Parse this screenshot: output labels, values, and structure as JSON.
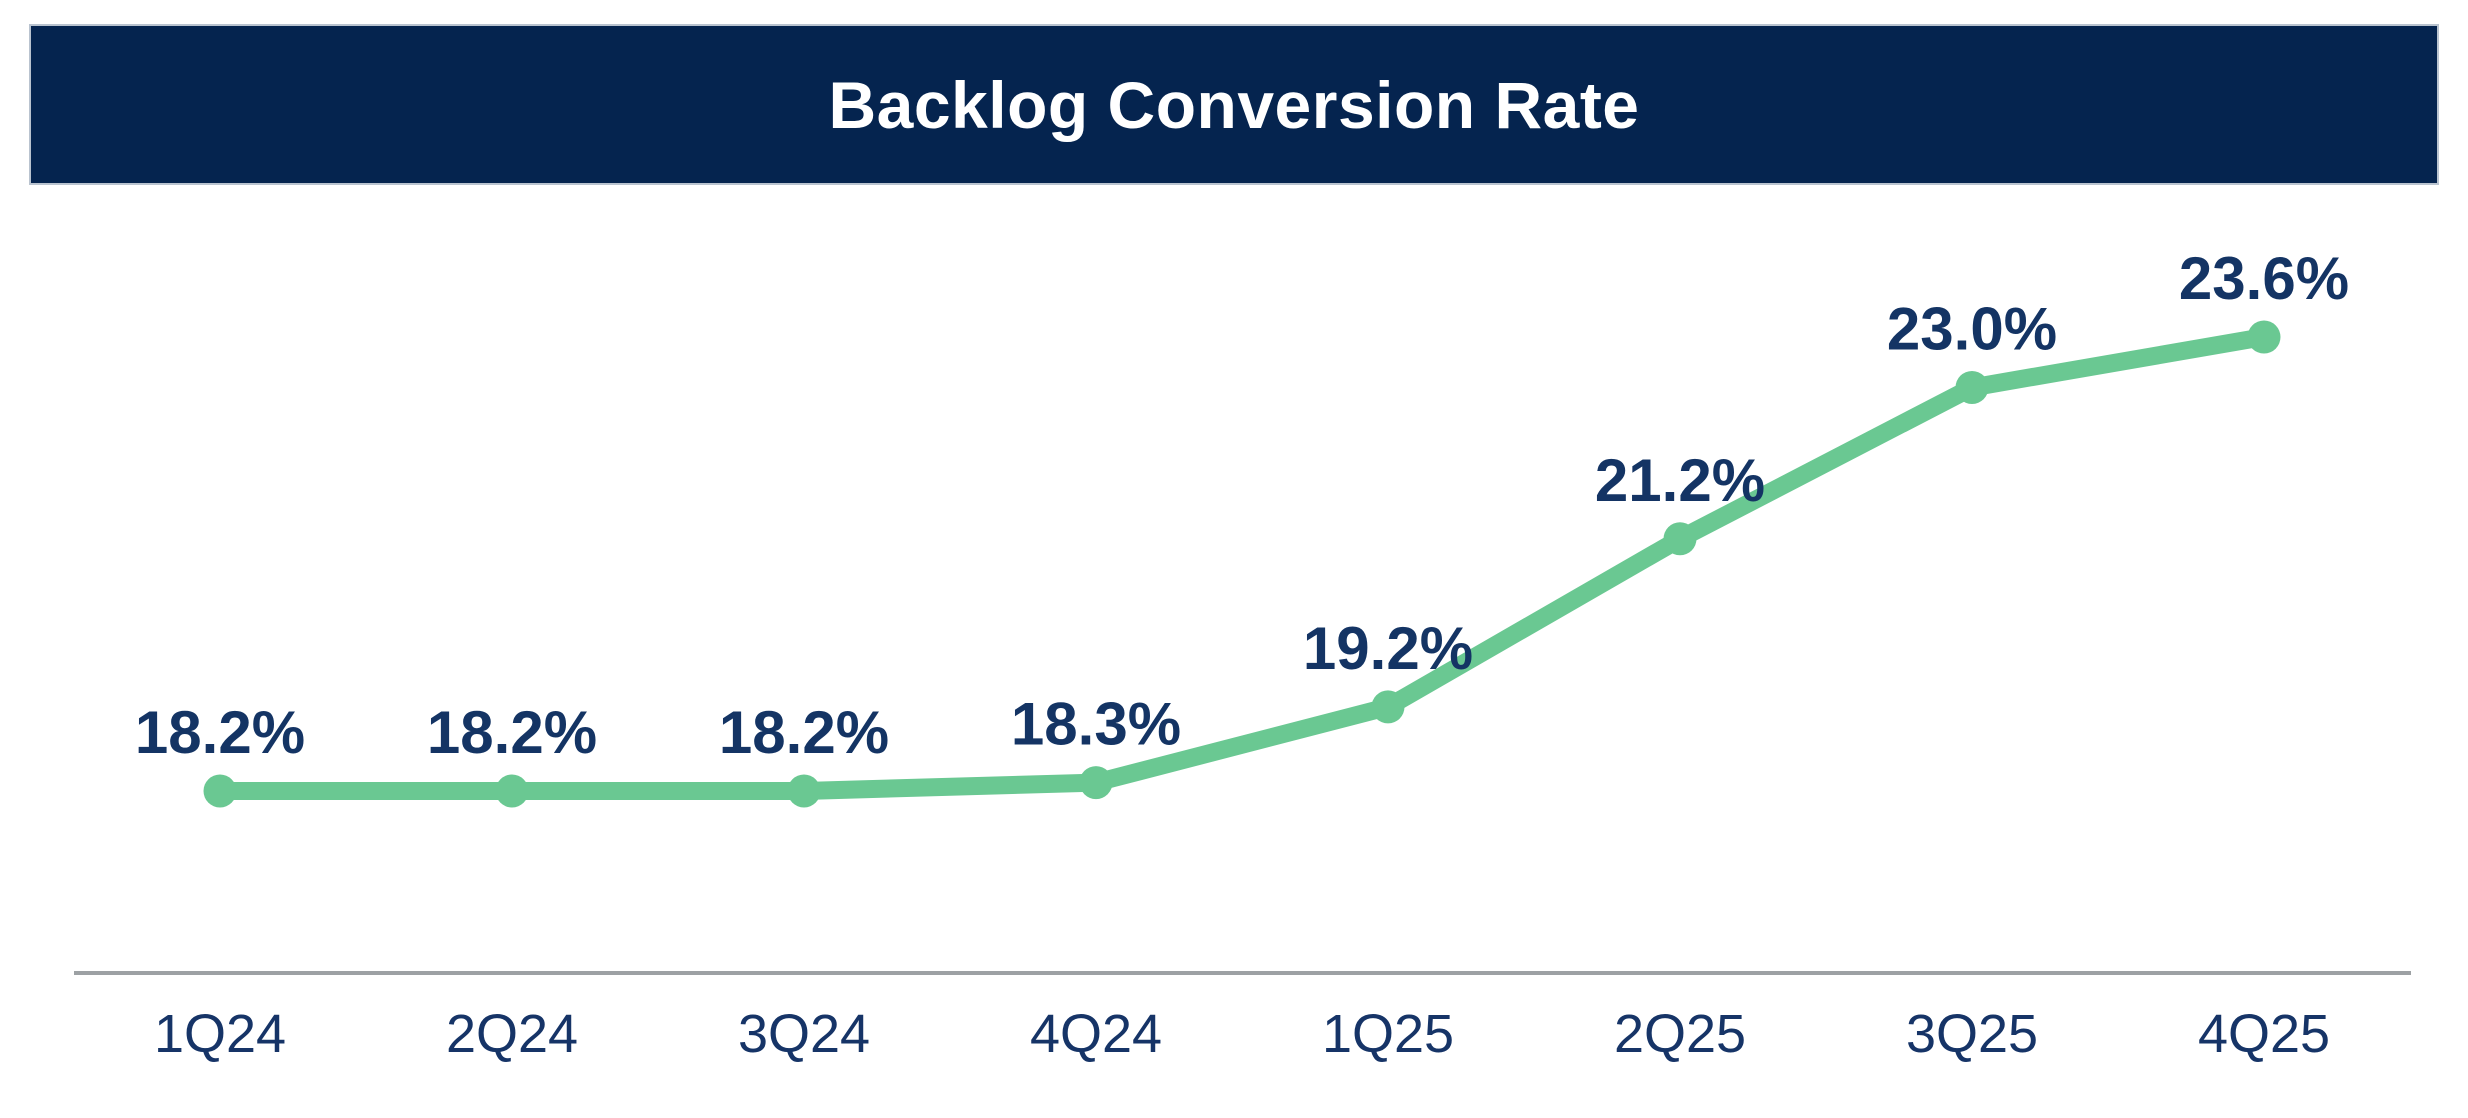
{
  "header": {
    "title": "Backlog Conversion Rate"
  },
  "colors": {
    "banner_bg": "#05244F",
    "banner_border": "#b9c3cf",
    "banner_text": "#ffffff",
    "line": "#6AC892",
    "data_label": "#143464",
    "tick_label": "#163467",
    "axis_line": "#9da1a4",
    "background": "#ffffff"
  },
  "chart_data": {
    "type": "line",
    "title": "Backlog Conversion Rate",
    "categories": [
      "1Q24",
      "2Q24",
      "3Q24",
      "4Q24",
      "1Q25",
      "2Q25",
      "3Q25",
      "4Q25"
    ],
    "values": [
      18.2,
      18.2,
      18.2,
      18.3,
      19.2,
      21.2,
      23.0,
      23.6
    ],
    "data_labels": [
      "18.2%",
      "18.2%",
      "18.2%",
      "18.3%",
      "19.2%",
      "21.2%",
      "23.0%",
      "23.6%"
    ],
    "unit": "%",
    "xlabel": "",
    "ylabel": "",
    "ylim": [
      18.2,
      23.6
    ],
    "grid": false,
    "legend": false,
    "marker_style": "circle",
    "label_position": "above",
    "line_color": "#6AC892"
  }
}
